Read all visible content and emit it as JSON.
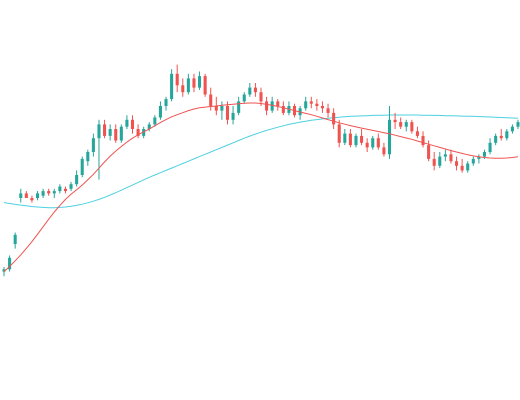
{
  "chart_data": {
    "type": "candlestick",
    "title": "",
    "xlabel": "",
    "ylabel": "",
    "grid": false,
    "legend": "none",
    "ylim": [
      0,
      100
    ],
    "colors": {
      "up": "#26a69a",
      "down": "#ef5350",
      "ma_fast": "#ef5350",
      "ma_slow": "#4dd0e1"
    },
    "series": [
      {
        "kind": "candles",
        "values": [
          [
            8.0,
            10.0,
            6.0,
            9.0
          ],
          [
            9.0,
            15.0,
            8.0,
            14.0
          ],
          [
            20.0,
            25.0,
            18.0,
            24.0
          ],
          [
            40.0,
            44.0,
            38.0,
            42.0
          ],
          [
            42.0,
            43.0,
            40.0,
            40.0
          ],
          [
            40.0,
            41.0,
            38.0,
            39.0
          ],
          [
            40.0,
            43.0,
            39.0,
            42.0
          ],
          [
            41.0,
            44.0,
            40.0,
            43.0
          ],
          [
            43.0,
            44.0,
            41.0,
            42.0
          ],
          [
            42.0,
            44.0,
            40.0,
            43.0
          ],
          [
            43.0,
            46.0,
            42.0,
            45.0
          ],
          [
            44.0,
            45.0,
            42.0,
            43.0
          ],
          [
            44.0,
            47.0,
            43.0,
            46.0
          ],
          [
            46.0,
            52.0,
            45.0,
            50.0
          ],
          [
            50.0,
            58.0,
            49.0,
            57.0
          ],
          [
            56.0,
            61.0,
            54.0,
            60.0
          ],
          [
            60.0,
            68.0,
            58.0,
            66.0
          ],
          [
            66.0,
            74.0,
            48.0,
            72.0
          ],
          [
            72.0,
            74.0,
            66.0,
            67.0
          ],
          [
            67.0,
            72.0,
            65.0,
            70.0
          ],
          [
            70.0,
            72.0,
            64.0,
            65.0
          ],
          [
            65.0,
            72.0,
            64.0,
            71.0
          ],
          [
            71.0,
            76.0,
            70.0,
            74.0
          ],
          [
            74.0,
            76.0,
            68.0,
            70.0
          ],
          [
            70.0,
            72.0,
            66.0,
            67.0
          ],
          [
            67.0,
            71.0,
            66.0,
            70.0
          ],
          [
            70.0,
            73.0,
            69.0,
            72.0
          ],
          [
            72.0,
            76.0,
            71.0,
            75.0
          ],
          [
            75.0,
            82.0,
            74.0,
            80.0
          ],
          [
            80.0,
            84.0,
            78.0,
            83.0
          ],
          [
            83.0,
            96.0,
            82.0,
            94.0
          ],
          [
            94.0,
            98.0,
            86.0,
            89.0
          ],
          [
            89.0,
            92.0,
            84.0,
            86.0
          ],
          [
            86.0,
            94.0,
            85.0,
            92.0
          ],
          [
            92.0,
            94.0,
            86.0,
            88.0
          ],
          [
            88.0,
            95.0,
            87.0,
            93.0
          ],
          [
            93.0,
            94.0,
            84.0,
            85.0
          ],
          [
            85.0,
            88.0,
            78.0,
            80.0
          ],
          [
            80.0,
            84.0,
            76.0,
            78.0
          ],
          [
            78.0,
            82.0,
            74.0,
            80.0
          ],
          [
            80.0,
            82.0,
            72.0,
            74.0
          ],
          [
            74.0,
            80.0,
            72.0,
            77.0
          ],
          [
            77.0,
            84.0,
            76.0,
            82.0
          ],
          [
            82.0,
            86.0,
            81.0,
            85.0
          ],
          [
            85.0,
            90.0,
            84.0,
            88.0
          ],
          [
            88.0,
            90.0,
            84.0,
            86.0
          ],
          [
            86.0,
            88.0,
            80.0,
            82.0
          ],
          [
            82.0,
            84.0,
            76.0,
            78.0
          ],
          [
            78.0,
            84.0,
            77.0,
            82.0
          ],
          [
            82.0,
            83.0,
            78.0,
            80.0
          ],
          [
            80.0,
            82.0,
            76.0,
            77.0
          ],
          [
            77.0,
            82.0,
            76.0,
            80.0
          ],
          [
            80.0,
            81.0,
            75.0,
            76.0
          ],
          [
            76.0,
            80.0,
            74.0,
            79.0
          ],
          [
            79.0,
            84.0,
            78.0,
            82.0
          ],
          [
            82.0,
            84.0,
            79.0,
            81.0
          ],
          [
            81.0,
            83.0,
            78.0,
            80.0
          ],
          [
            80.0,
            82.0,
            77.0,
            79.0
          ],
          [
            79.0,
            81.0,
            75.0,
            77.0
          ],
          [
            77.0,
            79.0,
            70.0,
            72.0
          ],
          [
            72.0,
            74.0,
            62.0,
            64.0
          ],
          [
            64.0,
            70.0,
            63.0,
            68.0
          ],
          [
            68.0,
            70.0,
            62.0,
            63.0
          ],
          [
            63.0,
            68.0,
            62.0,
            67.0
          ],
          [
            67.0,
            70.0,
            63.0,
            64.0
          ],
          [
            64.0,
            66.0,
            60.0,
            62.0
          ],
          [
            62.0,
            67.0,
            61.0,
            66.0
          ],
          [
            66.0,
            68.0,
            61.0,
            62.0
          ],
          [
            62.0,
            64.0,
            58.0,
            59.0
          ],
          [
            59.0,
            80.0,
            57.0,
            74.0
          ],
          [
            74.0,
            77.0,
            70.0,
            73.0
          ],
          [
            73.0,
            75.0,
            70.0,
            71.0
          ],
          [
            71.0,
            74.0,
            69.0,
            73.0
          ],
          [
            73.0,
            74.0,
            68.0,
            69.0
          ],
          [
            69.0,
            71.0,
            66.0,
            67.0
          ],
          [
            67.0,
            69.0,
            62.0,
            63.0
          ],
          [
            63.0,
            65.0,
            56.0,
            57.0
          ],
          [
            57.0,
            60.0,
            52.0,
            54.0
          ],
          [
            54.0,
            60.0,
            53.0,
            58.0
          ],
          [
            58.0,
            61.0,
            56.0,
            59.0
          ],
          [
            59.0,
            61.0,
            55.0,
            56.0
          ],
          [
            56.0,
            58.0,
            52.0,
            54.0
          ],
          [
            54.0,
            57.0,
            51.0,
            52.0
          ],
          [
            52.0,
            56.0,
            51.0,
            55.0
          ],
          [
            55.0,
            58.0,
            54.0,
            57.0
          ],
          [
            57.0,
            59.0,
            55.0,
            58.0
          ],
          [
            58.0,
            61.0,
            57.0,
            60.0
          ],
          [
            60.0,
            66.0,
            59.0,
            64.0
          ],
          [
            64.0,
            68.0,
            63.0,
            67.0
          ],
          [
            67.0,
            70.0,
            65.0,
            66.0
          ],
          [
            66.0,
            70.0,
            65.0,
            69.0
          ],
          [
            69.0,
            72.0,
            68.0,
            71.0
          ],
          [
            71.0,
            74.0,
            70.0,
            73.0
          ]
        ]
      },
      {
        "kind": "ma_fast",
        "values": [
          8.0,
          10.2,
          12.7,
          15.3,
          18.1,
          21.0,
          24.2,
          27.5,
          30.8,
          33.9,
          36.8,
          39.4,
          41.6,
          43.6,
          45.6,
          47.9,
          50.3,
          53.0,
          55.7,
          58.2,
          60.4,
          62.4,
          64.3,
          66.0,
          67.5,
          68.8,
          70.0,
          71.4,
          72.8,
          74.1,
          75.3,
          76.2,
          77.1,
          78.0,
          78.7,
          79.2,
          79.5,
          79.8,
          80.0,
          80.3,
          80.5,
          80.8,
          81.0,
          81.2,
          81.3,
          81.3,
          81.1,
          80.7,
          80.3,
          79.8,
          79.2,
          78.6,
          78.0,
          77.4,
          76.8,
          76.2,
          75.5,
          74.8,
          74.1,
          73.4,
          72.7,
          72.1,
          71.5,
          70.9,
          70.4,
          69.9,
          69.4,
          68.9,
          68.4,
          67.9,
          67.3,
          66.7,
          66.1,
          65.5,
          64.8,
          64.1,
          63.4,
          62.7,
          62.0,
          61.3,
          60.6,
          60.0,
          59.4,
          58.8,
          58.3,
          57.9,
          57.6,
          57.4,
          57.3,
          57.3,
          57.4,
          57.6,
          57.9
        ]
      },
      {
        "kind": "ma_slow",
        "values": [
          38.0,
          37.6,
          37.2,
          36.9,
          36.6,
          36.3,
          36.1,
          35.9,
          35.8,
          35.8,
          35.9,
          36.1,
          36.4,
          36.8,
          37.3,
          37.9,
          38.6,
          39.4,
          40.3,
          41.3,
          42.3,
          43.4,
          44.5,
          45.6,
          46.8,
          47.9,
          49.0,
          50.0,
          51.0,
          52.0,
          53.0,
          54.0,
          55.0,
          56.0,
          57.0,
          58.0,
          59.0,
          60.0,
          61.0,
          62.0,
          63.0,
          64.0,
          65.0,
          66.0,
          66.9,
          67.8,
          68.6,
          69.4,
          70.1,
          70.8,
          71.4,
          72.0,
          72.5,
          73.0,
          73.4,
          73.8,
          74.1,
          74.4,
          74.7,
          74.9,
          75.1,
          75.3,
          75.5,
          75.6,
          75.7,
          75.8,
          75.9,
          76.0,
          76.0,
          76.1,
          76.1,
          76.1,
          76.1,
          76.1,
          76.1,
          76.0,
          76.0,
          75.9,
          75.9,
          75.8,
          75.8,
          75.7,
          75.6,
          75.5,
          75.5,
          75.4,
          75.3,
          75.2,
          75.1,
          75.0,
          74.9,
          74.8,
          74.7
        ]
      }
    ]
  }
}
